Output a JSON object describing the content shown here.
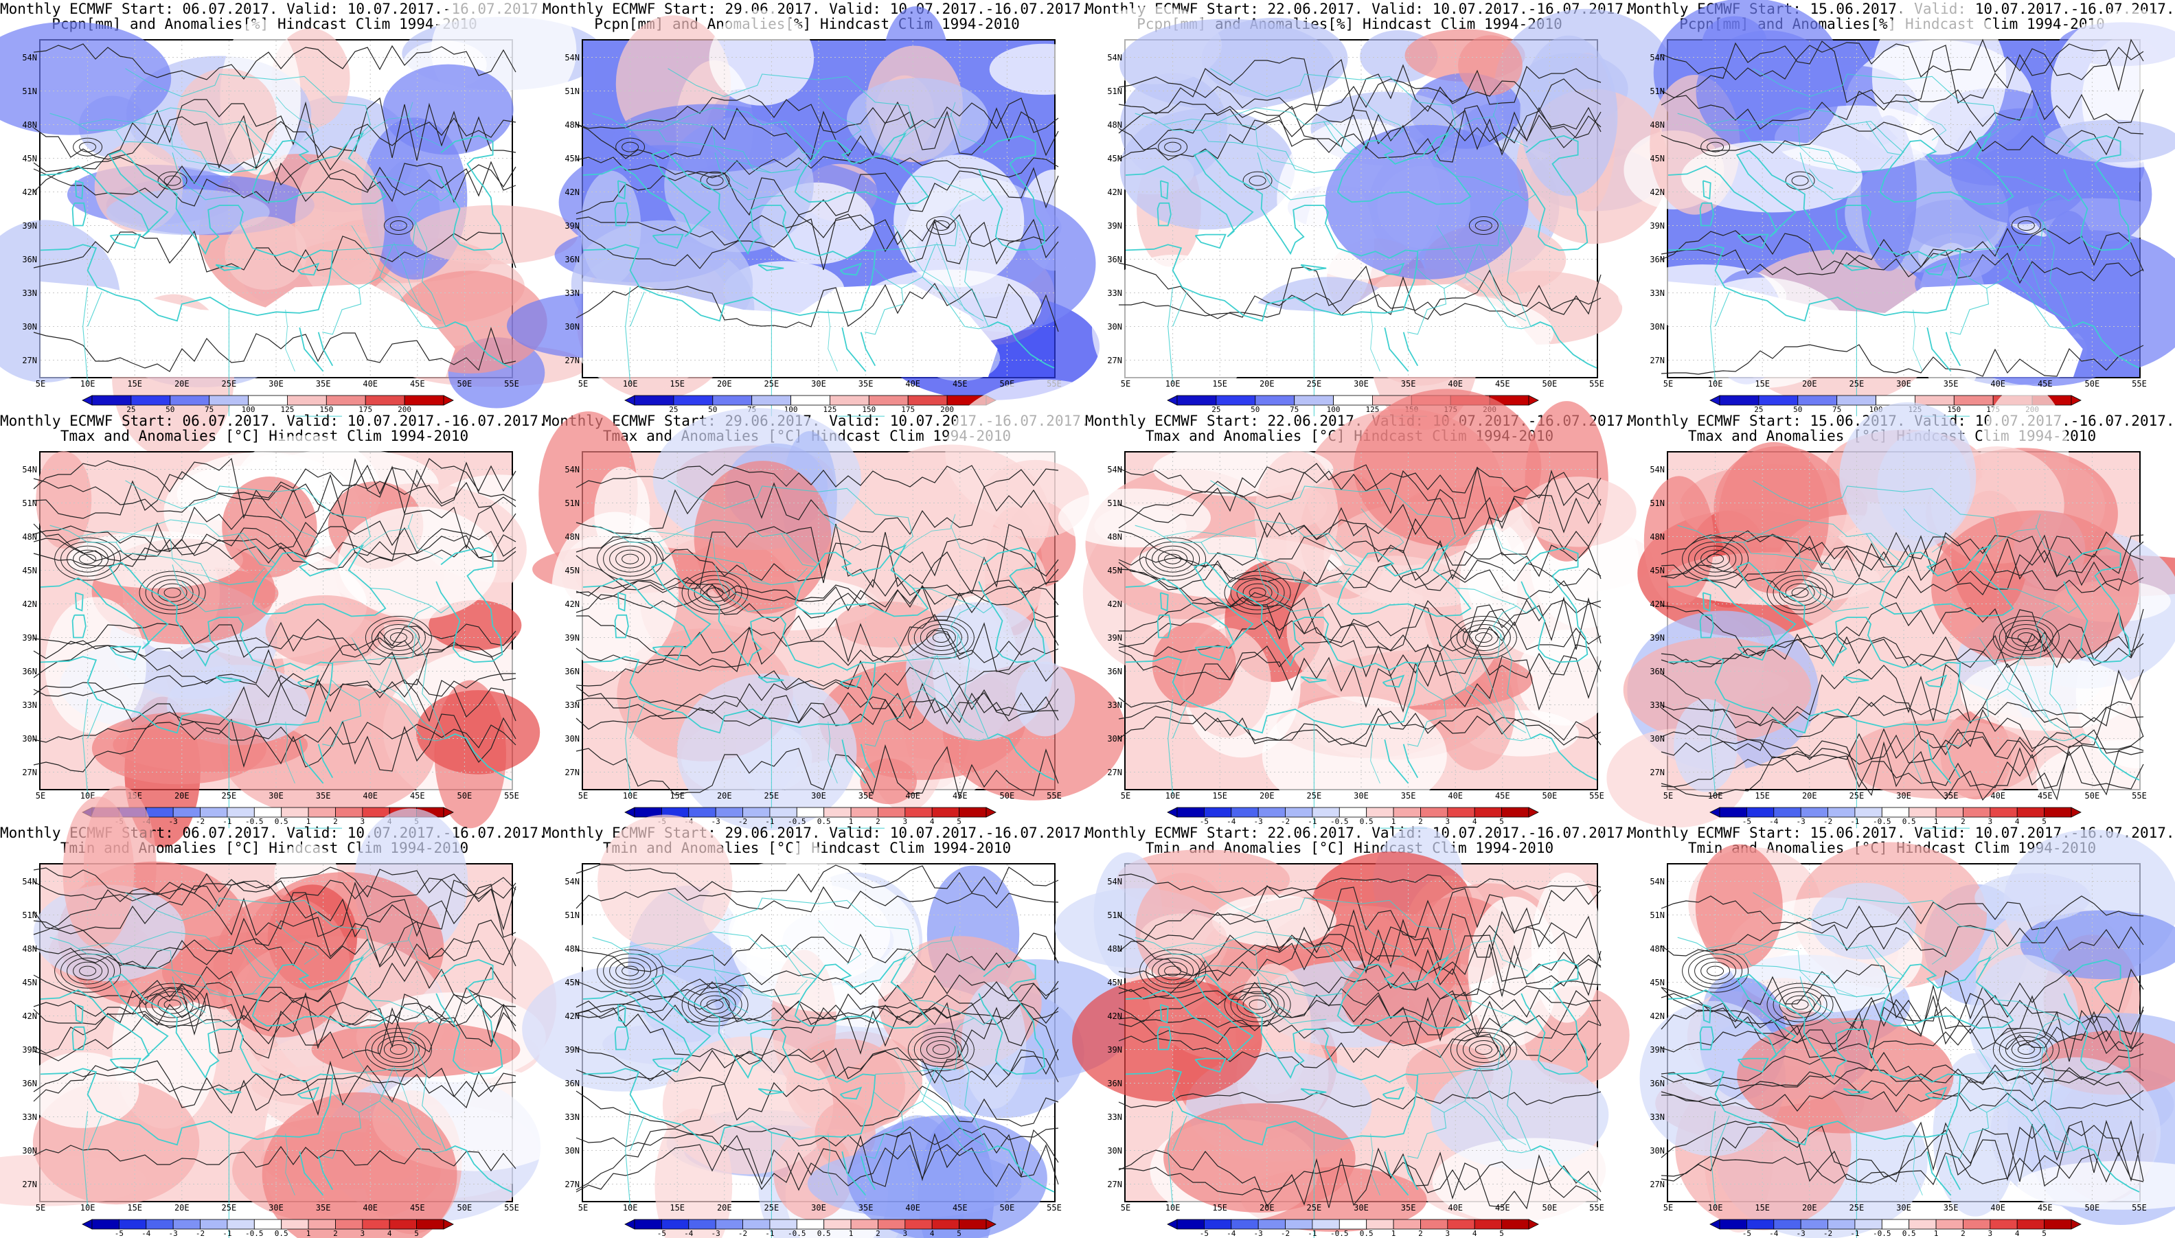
{
  "lat_labels": [
    "54N",
    "51N",
    "48N",
    "45N",
    "42N",
    "39N",
    "36N",
    "33N",
    "30N",
    "27N"
  ],
  "lon_labels": [
    "5E",
    "10E",
    "15E",
    "20E",
    "25E",
    "30E",
    "35E",
    "40E",
    "45E",
    "50E",
    "55E"
  ],
  "colorbars": {
    "pcpn": {
      "labels": [
        "25",
        "50",
        "75",
        "100",
        "125",
        "150",
        "175",
        "200"
      ],
      "colors": [
        "#1010c8",
        "#2e3cf0",
        "#6d7cf5",
        "#b7c1f7",
        "#ffffff",
        "#f7c3c3",
        "#f08e8e",
        "#e34a4a",
        "#c40000"
      ]
    },
    "temp": {
      "labels": [
        "-5",
        "-4",
        "-3",
        "-2",
        "-1",
        "-0.5",
        "0.5",
        "1",
        "2",
        "3",
        "4",
        "5"
      ],
      "colors": [
        "#0000b4",
        "#1e32e6",
        "#4b64f0",
        "#7d91f5",
        "#aab9f8",
        "#d2dafa",
        "#ffffff",
        "#fbd4d4",
        "#f6aaaa",
        "#ef7c7c",
        "#e64646",
        "#d21e1e",
        "#b40000"
      ]
    }
  },
  "colors": {
    "coast": "#3ecfcf",
    "contour": "#222222",
    "grid": "#c8c8c8"
  },
  "panels": [
    {
      "line1": "Monthly ECMWF Start: 06.07.2017. Valid: 10.07.2017.-16.07.2017.",
      "line2": "Pcpn[mm] and Anomalies[%] Hindcast Clim 1994-2010",
      "var": "pcpn",
      "bias": 0
    },
    {
      "line1": "Monthly ECMWF Start: 29.06.2017. Valid: 10.07.2017.-16.07.2017.",
      "line2": "Pcpn[mm] and Anomalies[%] Hindcast Clim 1994-2010",
      "var": "pcpn",
      "bias": -1
    },
    {
      "line1": "Monthly ECMWF Start: 22.06.2017. Valid: 10.07.2017.-16.07.2017.",
      "line2": "Pcpn[mm] and Anomalies[%] Hindcast Clim 1994-2010",
      "var": "pcpn",
      "bias": 0
    },
    {
      "line1": "Monthly ECMWF Start: 15.06.2017. Valid: 10.07.2017.-16.07.2017.",
      "line2": "Pcpn[mm] and Anomalies[%] Hindcast Clim 1994-2010",
      "var": "pcpn",
      "bias": -1
    },
    {
      "line1": "Monthly ECMWF Start: 06.07.2017. Valid: 10.07.2017.-16.07.2017.",
      "line2": "Tmax and Anomalies [°C] Hindcast Clim 1994-2010",
      "var": "tmax",
      "bias": 1
    },
    {
      "line1": "Monthly ECMWF Start: 29.06.2017. Valid: 10.07.2017.-16.07.2017.",
      "line2": "Tmax and Anomalies [°C] Hindcast Clim 1994-2010",
      "var": "tmax",
      "bias": 1
    },
    {
      "line1": "Monthly ECMWF Start: 22.06.2017. Valid: 10.07.2017.-16.07.2017.",
      "line2": "Tmax and Anomalies [°C] Hindcast Clim 1994-2010",
      "var": "tmax",
      "bias": 1
    },
    {
      "line1": "Monthly ECMWF Start: 15.06.2017. Valid: 10.07.2017.-16.07.2017.",
      "line2": "Tmax and Anomalies [°C] Hindcast Clim 1994-2010",
      "var": "tmax",
      "bias": 1
    },
    {
      "line1": "Monthly ECMWF Start: 06.07.2017. Valid: 10.07.2017.-16.07.2017.",
      "line2": "Tmin and Anomalies [°C] Hindcast Clim 1994-2010",
      "var": "tmin",
      "bias": 1
    },
    {
      "line1": "Monthly ECMWF Start: 29.06.2017. Valid: 10.07.2017.-16.07.2017.",
      "line2": "Tmin and Anomalies [°C] Hindcast Clim 1994-2010",
      "var": "tmin",
      "bias": 0
    },
    {
      "line1": "Monthly ECMWF Start: 22.06.2017. Valid: 10.07.2017.-16.07.2017.",
      "line2": "Tmin and Anomalies [°C] Hindcast Clim 1994-2010",
      "var": "tmin",
      "bias": 1
    },
    {
      "line1": "Monthly ECMWF Start: 15.06.2017. Valid: 10.07.2017.-16.07.2017.",
      "line2": "Tmin and Anomalies [°C] Hindcast Clim 1994-2010",
      "var": "tmin",
      "bias": 0
    }
  ]
}
